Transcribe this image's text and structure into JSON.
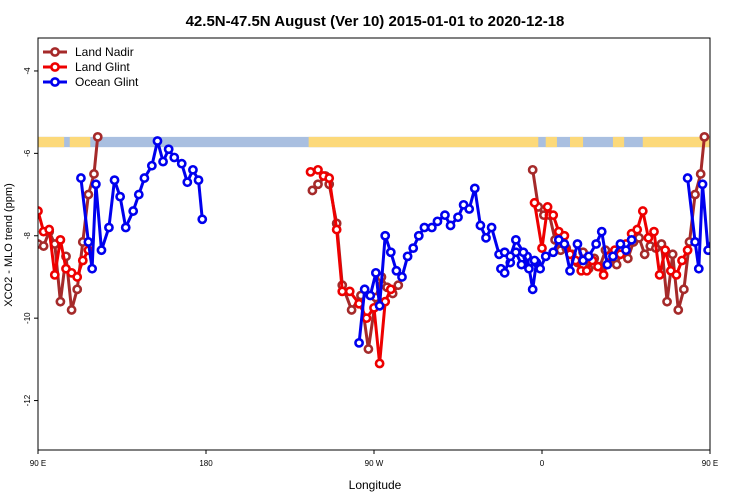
{
  "chart_data": {
    "type": "line",
    "title": "42.5N-47.5N August (Ver 10)   2015-01-01 to 2020-12-18",
    "xlabel": "Longitude",
    "ylabel": "XCO2 - MLO trend (ppm)",
    "xlim": [
      90,
      450
    ],
    "ylim": [
      -13.2,
      -3.2
    ],
    "x_ticks": [
      {
        "value": 90,
        "label": "90 E"
      },
      {
        "value": 180,
        "label": "180"
      },
      {
        "value": 270,
        "label": "90 W"
      },
      {
        "value": 360,
        "label": "0"
      },
      {
        "value": 450,
        "label": "90 E"
      },
      {
        "value": 540,
        "label": "180"
      }
    ],
    "y_ticks": [
      {
        "value": -4,
        "label": "-4"
      },
      {
        "value": -6,
        "label": "-6"
      },
      {
        "value": -8,
        "label": "-8"
      },
      {
        "value": -10,
        "label": "-10"
      },
      {
        "value": -12,
        "label": "-12"
      }
    ],
    "legend_position": "top-left",
    "land_ocean_band": {
      "y_range": [
        -5.6,
        -5.85
      ],
      "land_color": "#fcd97a",
      "ocean_color": "#a9bfe0",
      "land_segments": [
        [
          90,
          104
        ],
        [
          107,
          118
        ],
        [
          235,
          358
        ],
        [
          362,
          368
        ],
        [
          375,
          382
        ],
        [
          398,
          404
        ],
        [
          414,
          493
        ],
        [
          495,
          540
        ]
      ]
    },
    "series": [
      {
        "name": "Land Nadir",
        "color": "#a52a2a",
        "segments": [
          [
            [
              90,
              -8.2
            ],
            [
              93,
              -8.25
            ],
            [
              96,
              -7.9
            ],
            [
              99,
              -8.2
            ],
            [
              102,
              -9.6
            ],
            [
              105,
              -8.5
            ],
            [
              108,
              -9.8
            ],
            [
              111,
              -9.3
            ],
            [
              114,
              -8.15
            ],
            [
              117,
              -7
            ],
            [
              120,
              -6.5
            ],
            [
              122,
              -5.6
            ]
          ],
          [
            [
              237,
              -6.9
            ],
            [
              240,
              -6.75
            ],
            [
              244,
              -6.55
            ],
            [
              246,
              -6.75
            ],
            [
              250,
              -7.7
            ],
            [
              253,
              -9.2
            ],
            [
              258,
              -9.8
            ],
            [
              263,
              -9.45
            ],
            [
              267,
              -10.75
            ],
            [
              271,
              -9.5
            ],
            [
              274,
              -9
            ],
            [
              277,
              -9.25
            ],
            [
              280,
              -9.4
            ],
            [
              283,
              -9.2
            ]
          ],
          [
            [
              355,
              -6.4
            ],
            [
              358,
              -7.3
            ],
            [
              361,
              -7.5
            ],
            [
              364,
              -7.5
            ],
            [
              367,
              -8.1
            ],
            [
              370,
              -8.35
            ],
            [
              373,
              -8.3
            ],
            [
              376,
              -8.45
            ],
            [
              379,
              -8.65
            ],
            [
              382,
              -8.4
            ],
            [
              385,
              -8.8
            ],
            [
              388,
              -8.55
            ],
            [
              391,
              -8.75
            ],
            [
              394,
              -8.35
            ],
            [
              397,
              -8.55
            ],
            [
              400,
              -8.7
            ],
            [
              403,
              -8.35
            ],
            [
              406,
              -8.55
            ],
            [
              409,
              -8.15
            ],
            [
              412,
              -8.05
            ],
            [
              415,
              -8.45
            ],
            [
              418,
              -8.25
            ],
            [
              421,
              -8.3
            ],
            [
              424,
              -8.2
            ],
            [
              427,
              -9.6
            ],
            [
              430,
              -8.45
            ],
            [
              433,
              -9.8
            ],
            [
              436,
              -9.3
            ],
            [
              439,
              -8.15
            ],
            [
              442,
              -7
            ],
            [
              445,
              -6.5
            ],
            [
              447,
              -5.6
            ]
          ]
        ]
      },
      {
        "name": "Land Glint",
        "color": "#ee0000",
        "segments": [
          [
            [
              90,
              -7.4
            ],
            [
              93,
              -7.9
            ],
            [
              96,
              -7.85
            ],
            [
              99,
              -8.95
            ],
            [
              102,
              -8.1
            ],
            [
              105,
              -8.8
            ],
            [
              108,
              -8.9
            ],
            [
              111,
              -9.0
            ],
            [
              114,
              -8.6
            ],
            [
              117,
              -8.35
            ]
          ],
          [
            [
              236,
              -6.45
            ],
            [
              240,
              -6.4
            ],
            [
              243,
              -6.55
            ],
            [
              246,
              -6.6
            ],
            [
              250,
              -7.85
            ],
            [
              253,
              -9.35
            ],
            [
              257,
              -9.35
            ],
            [
              262,
              -9.65
            ],
            [
              266,
              -10.0
            ],
            [
              270,
              -9.75
            ],
            [
              273,
              -11.1
            ],
            [
              276,
              -9.6
            ],
            [
              279,
              -9.3
            ]
          ],
          [
            [
              356,
              -7.2
            ],
            [
              360,
              -8.3
            ],
            [
              363,
              -7.3
            ],
            [
              366,
              -7.5
            ],
            [
              369,
              -7.9
            ],
            [
              372,
              -8.0
            ],
            [
              375,
              -8.45
            ],
            [
              378,
              -8.6
            ],
            [
              381,
              -8.85
            ],
            [
              384,
              -8.85
            ],
            [
              387,
              -8.6
            ],
            [
              390,
              -8.75
            ],
            [
              393,
              -8.95
            ],
            [
              396,
              -8.5
            ],
            [
              399,
              -8.35
            ],
            [
              402,
              -8.45
            ],
            [
              405,
              -8.2
            ],
            [
              408,
              -7.95
            ],
            [
              411,
              -7.85
            ],
            [
              414,
              -7.4
            ],
            [
              417,
              -8.05
            ],
            [
              420,
              -7.9
            ],
            [
              423,
              -8.95
            ],
            [
              426,
              -8.35
            ],
            [
              429,
              -8.85
            ],
            [
              432,
              -8.95
            ],
            [
              435,
              -8.6
            ],
            [
              438,
              -8.35
            ]
          ]
        ]
      },
      {
        "name": "Ocean Glint",
        "color": "#0000ee",
        "segments": [
          [
            [
              113,
              -6.6
            ],
            [
              117,
              -8.15
            ],
            [
              119,
              -8.8
            ],
            [
              121,
              -6.75
            ],
            [
              124,
              -8.35
            ],
            [
              128,
              -7.8
            ],
            [
              131,
              -6.65
            ],
            [
              134,
              -7.05
            ],
            [
              137,
              -7.8
            ],
            [
              141,
              -7.4
            ],
            [
              144,
              -7.0
            ],
            [
              147,
              -6.6
            ],
            [
              151,
              -6.3
            ],
            [
              154,
              -5.7
            ],
            [
              157,
              -6.2
            ],
            [
              160,
              -5.9
            ],
            [
              163,
              -6.1
            ],
            [
              167,
              -6.25
            ],
            [
              170,
              -6.7
            ],
            [
              173,
              -6.4
            ],
            [
              176,
              -6.65
            ],
            [
              178,
              -7.6
            ]
          ],
          [
            [
              262,
              -10.6
            ],
            [
              265,
              -9.3
            ],
            [
              268,
              -9.45
            ],
            [
              271,
              -8.9
            ],
            [
              273,
              -9.7
            ],
            [
              276,
              -8.0
            ],
            [
              279,
              -8.4
            ],
            [
              282,
              -8.85
            ],
            [
              285,
              -9.0
            ],
            [
              288,
              -8.5
            ],
            [
              291,
              -8.3
            ],
            [
              294,
              -8.0
            ],
            [
              297,
              -7.8
            ],
            [
              301,
              -7.8
            ],
            [
              304,
              -7.65
            ],
            [
              308,
              -7.5
            ],
            [
              311,
              -7.75
            ],
            [
              315,
              -7.55
            ],
            [
              318,
              -7.25
            ],
            [
              321,
              -7.35
            ],
            [
              324,
              -6.85
            ],
            [
              327,
              -7.75
            ],
            [
              330,
              -8.05
            ],
            [
              333,
              -7.8
            ],
            [
              337,
              -8.45
            ],
            [
              340,
              -8.4
            ],
            [
              343,
              -8.65
            ],
            [
              346,
              -8.4
            ],
            [
              349,
              -8.7
            ],
            [
              352,
              -8.5
            ],
            [
              355,
              -9.3
            ],
            [
              357,
              -8.65
            ]
          ],
          [
            [
              338,
              -8.8
            ],
            [
              340,
              -8.9
            ],
            [
              343,
              -8.5
            ],
            [
              346,
              -8.1
            ],
            [
              350,
              -8.4
            ],
            [
              353,
              -8.8
            ],
            [
              356,
              -8.6
            ],
            [
              359,
              -8.8
            ],
            [
              362,
              -8.5
            ],
            [
              366,
              -8.4
            ],
            [
              369,
              -8.1
            ],
            [
              372,
              -8.2
            ],
            [
              375,
              -8.85
            ],
            [
              379,
              -8.2
            ],
            [
              382,
              -8.6
            ],
            [
              385,
              -8.5
            ],
            [
              389,
              -8.2
            ],
            [
              392,
              -7.9
            ],
            [
              395,
              -8.7
            ],
            [
              398,
              -8.5
            ],
            [
              402,
              -8.2
            ],
            [
              405,
              -8.35
            ],
            [
              408,
              -8.1
            ]
          ],
          [
            [
              438,
              -6.6
            ],
            [
              442,
              -8.15
            ],
            [
              444,
              -8.8
            ],
            [
              446,
              -6.75
            ],
            [
              449,
              -8.35
            ],
            [
              453,
              -7.8
            ],
            [
              456,
              -6.65
            ],
            [
              459,
              -7.05
            ],
            [
              462,
              -7.8
            ],
            [
              466,
              -7.4
            ],
            [
              469,
              -7.0
            ],
            [
              472,
              -6.6
            ],
            [
              476,
              -6.3
            ],
            [
              479,
              -5.7
            ]
          ]
        ]
      }
    ]
  }
}
